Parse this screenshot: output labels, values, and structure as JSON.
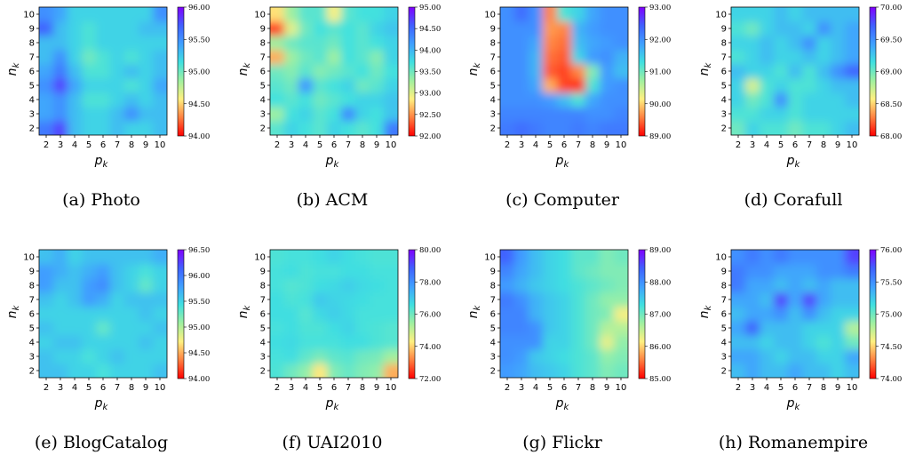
{
  "colors": {
    "colormap": [
      "#ff0000",
      "#ff8040",
      "#fff080",
      "#a0f0a0",
      "#40e0e0",
      "#40a0ff",
      "#4060ff",
      "#8000ff"
    ],
    "axis": "#000000",
    "background": "#ffffff"
  },
  "shared_axes": {
    "x_ticks": [
      "2",
      "3",
      "4",
      "5",
      "6",
      "7",
      "8",
      "9",
      "10"
    ],
    "y_ticks": [
      "2",
      "3",
      "4",
      "5",
      "6",
      "7",
      "8",
      "9",
      "10"
    ],
    "xlabel": "p_k",
    "ylabel": "n_k",
    "xlabel_main": "p",
    "xlabel_sub": "k",
    "ylabel_main": "n",
    "ylabel_sub": "k"
  },
  "chart_data": [
    {
      "type": "heatmap",
      "caption": "(a) Photo",
      "x": [
        2,
        3,
        4,
        5,
        6,
        7,
        8,
        9,
        10
      ],
      "y": [
        2,
        3,
        4,
        5,
        6,
        7,
        8,
        9,
        10
      ],
      "vmin": 94.0,
      "vmax": 96.0,
      "colorbar_ticks": [
        "94.00",
        "94.50",
        "95.00",
        "95.50",
        "96.00"
      ],
      "values": [
        [
          95.6,
          95.8,
          95.3,
          95.2,
          95.2,
          95.3,
          95.2,
          95.2,
          95.3
        ],
        [
          95.4,
          95.5,
          95.3,
          95.2,
          95.2,
          95.3,
          95.5,
          95.3,
          95.3
        ],
        [
          95.4,
          95.5,
          95.3,
          95.1,
          95.1,
          95.2,
          95.3,
          95.2,
          95.3
        ],
        [
          95.5,
          95.8,
          95.4,
          95.2,
          95.2,
          95.2,
          95.1,
          95.2,
          95.4
        ],
        [
          95.4,
          95.6,
          95.3,
          95.1,
          95.1,
          95.2,
          95.3,
          95.2,
          95.3
        ],
        [
          95.3,
          95.5,
          95.2,
          95.0,
          95.1,
          95.2,
          95.1,
          95.2,
          95.3
        ],
        [
          95.3,
          95.3,
          95.2,
          95.1,
          95.2,
          95.2,
          95.2,
          95.2,
          95.2
        ],
        [
          95.7,
          95.3,
          95.2,
          95.1,
          95.2,
          95.2,
          95.2,
          95.3,
          95.3
        ],
        [
          95.5,
          95.4,
          95.2,
          95.2,
          95.2,
          95.2,
          95.2,
          95.2,
          95.5
        ]
      ]
    },
    {
      "type": "heatmap",
      "caption": "(b) ACM",
      "x": [
        2,
        3,
        4,
        5,
        6,
        7,
        8,
        9,
        10
      ],
      "y": [
        2,
        3,
        4,
        5,
        6,
        7,
        8,
        9,
        10
      ],
      "vmin": 92.0,
      "vmax": 95.0,
      "colorbar_ticks": [
        "92.00",
        "92.50",
        "93.00",
        "93.50",
        "94.00",
        "94.50",
        "95.00"
      ],
      "values": [
        [
          93.6,
          93.8,
          93.7,
          93.6,
          93.8,
          93.7,
          93.6,
          93.7,
          94.4
        ],
        [
          93.3,
          93.7,
          93.8,
          93.6,
          93.7,
          94.3,
          93.8,
          93.7,
          93.9
        ],
        [
          93.7,
          93.6,
          93.7,
          93.5,
          93.6,
          93.7,
          93.8,
          93.8,
          93.9
        ],
        [
          93.6,
          93.5,
          94.2,
          93.6,
          93.7,
          93.8,
          93.5,
          93.6,
          93.8
        ],
        [
          93.5,
          93.4,
          93.6,
          93.4,
          93.5,
          93.6,
          93.7,
          93.5,
          93.7
        ],
        [
          92.6,
          93.3,
          93.5,
          93.6,
          93.3,
          93.7,
          93.6,
          93.4,
          93.8
        ],
        [
          93.3,
          93.5,
          93.6,
          93.6,
          93.5,
          93.7,
          93.6,
          93.7,
          93.8
        ],
        [
          92.2,
          93.0,
          93.5,
          93.7,
          93.6,
          93.7,
          93.6,
          93.8,
          93.9
        ],
        [
          92.8,
          93.3,
          93.6,
          93.6,
          92.9,
          93.6,
          93.7,
          93.7,
          93.8
        ]
      ]
    },
    {
      "type": "heatmap",
      "caption": "(c) Computer",
      "x": [
        2,
        3,
        4,
        5,
        6,
        7,
        8,
        9,
        10
      ],
      "y": [
        2,
        3,
        4,
        5,
        6,
        7,
        8,
        9,
        10
      ],
      "vmin": 89.0,
      "vmax": 93.0,
      "colorbar_ticks": [
        "89.00",
        "90.00",
        "91.00",
        "92.00",
        "93.00"
      ],
      "values": [
        [
          92.2,
          92.3,
          92.2,
          92.1,
          92.1,
          92.2,
          92.1,
          92.2,
          92.2
        ],
        [
          92.1,
          92.1,
          92.1,
          92.1,
          92.1,
          92.1,
          92.0,
          92.0,
          92.1
        ],
        [
          92.0,
          92.0,
          92.0,
          91.9,
          91.6,
          91.2,
          91.8,
          92.0,
          92.0
        ],
        [
          92.0,
          92.0,
          91.8,
          89.8,
          89.3,
          89.2,
          91.2,
          91.9,
          92.0
        ],
        [
          92.0,
          92.0,
          91.7,
          89.4,
          89.3,
          89.6,
          90.9,
          91.9,
          91.6
        ],
        [
          92.0,
          92.0,
          91.7,
          89.5,
          89.4,
          91.4,
          91.9,
          92.0,
          91.7
        ],
        [
          92.0,
          92.0,
          91.8,
          89.6,
          89.5,
          91.6,
          91.8,
          91.9,
          92.0
        ],
        [
          92.0,
          92.0,
          92.0,
          89.7,
          89.6,
          91.7,
          91.9,
          92.0,
          92.0
        ],
        [
          92.0,
          92.3,
          92.0,
          89.6,
          91.2,
          91.4,
          91.8,
          92.0,
          92.0
        ]
      ]
    },
    {
      "type": "heatmap",
      "caption": "(d) Corafull",
      "x": [
        2,
        3,
        4,
        5,
        6,
        7,
        8,
        9,
        10
      ],
      "y": [
        2,
        3,
        4,
        5,
        6,
        7,
        8,
        9,
        10
      ],
      "vmin": 68.0,
      "vmax": 70.0,
      "colorbar_ticks": [
        "68.00",
        "68.50",
        "69.00",
        "69.50",
        "70.00"
      ],
      "values": [
        [
          69.0,
          69.2,
          69.1,
          69.1,
          69.0,
          69.1,
          69.1,
          69.2,
          69.3
        ],
        [
          69.1,
          69.1,
          69.2,
          69.2,
          69.1,
          69.2,
          69.2,
          69.2,
          69.2
        ],
        [
          69.2,
          69.0,
          69.1,
          69.5,
          69.1,
          69.2,
          69.2,
          69.2,
          69.3
        ],
        [
          69.2,
          68.7,
          69.1,
          69.2,
          69.1,
          69.1,
          69.2,
          69.3,
          69.3
        ],
        [
          69.3,
          69.2,
          69.2,
          69.1,
          69.3,
          69.1,
          69.3,
          69.5,
          69.7
        ],
        [
          69.1,
          69.2,
          69.3,
          69.2,
          69.2,
          69.3,
          69.2,
          69.3,
          69.4
        ],
        [
          69.2,
          69.2,
          69.3,
          69.2,
          69.3,
          69.5,
          69.2,
          69.3,
          69.4
        ],
        [
          69.1,
          69.0,
          69.2,
          69.3,
          69.3,
          69.2,
          69.5,
          69.3,
          69.4
        ],
        [
          69.2,
          69.2,
          69.2,
          69.3,
          69.2,
          69.3,
          69.3,
          69.3,
          69.3
        ]
      ]
    },
    {
      "type": "heatmap",
      "caption": "(e) BlogCatalog",
      "x": [
        2,
        3,
        4,
        5,
        6,
        7,
        8,
        9,
        10
      ],
      "y": [
        2,
        3,
        4,
        5,
        6,
        7,
        8,
        9,
        10
      ],
      "vmin": 94.0,
      "vmax": 96.5,
      "colorbar_ticks": [
        "94.00",
        "94.50",
        "95.00",
        "95.50",
        "96.00",
        "96.50"
      ],
      "values": [
        [
          95.6,
          95.6,
          95.5,
          95.5,
          95.4,
          95.5,
          95.5,
          95.5,
          95.6
        ],
        [
          95.6,
          95.5,
          95.5,
          95.4,
          95.5,
          95.6,
          95.5,
          95.5,
          95.5
        ],
        [
          95.5,
          95.6,
          95.6,
          95.5,
          95.5,
          95.5,
          95.5,
          95.6,
          95.5
        ],
        [
          95.6,
          95.5,
          95.5,
          95.5,
          95.3,
          95.5,
          95.5,
          95.5,
          95.6
        ],
        [
          95.5,
          95.5,
          95.5,
          95.5,
          95.5,
          95.5,
          95.5,
          95.6,
          95.5
        ],
        [
          95.6,
          95.5,
          95.6,
          95.8,
          95.7,
          95.5,
          95.6,
          95.6,
          95.6
        ],
        [
          95.8,
          95.6,
          95.6,
          95.8,
          95.9,
          95.6,
          95.5,
          95.3,
          95.5
        ],
        [
          95.8,
          95.7,
          95.6,
          95.7,
          95.8,
          95.6,
          95.5,
          95.4,
          95.5
        ],
        [
          95.6,
          95.7,
          95.5,
          95.6,
          95.6,
          95.6,
          95.6,
          95.6,
          95.7
        ]
      ]
    },
    {
      "type": "heatmap",
      "caption": "(f) UAI2010",
      "x": [
        2,
        3,
        4,
        5,
        6,
        7,
        8,
        9,
        10
      ],
      "y": [
        2,
        3,
        4,
        5,
        6,
        7,
        8,
        9,
        10
      ],
      "vmin": 72.0,
      "vmax": 80.0,
      "colorbar_ticks": [
        "72.00",
        "74.00",
        "76.00",
        "78.00",
        "80.00"
      ],
      "values": [
        [
          76.4,
          76.0,
          75.6,
          74.2,
          75.8,
          76.1,
          75.8,
          75.6,
          73.6
        ],
        [
          76.5,
          76.6,
          76.2,
          75.9,
          76.2,
          76.3,
          76.0,
          75.9,
          75.4
        ],
        [
          76.6,
          76.7,
          76.5,
          76.5,
          76.5,
          76.6,
          76.6,
          76.4,
          76.3
        ],
        [
          76.5,
          76.6,
          76.4,
          76.4,
          76.6,
          76.8,
          76.5,
          76.4,
          76.3
        ],
        [
          76.6,
          76.6,
          76.3,
          76.7,
          76.9,
          76.7,
          76.5,
          76.5,
          76.5
        ],
        [
          76.6,
          76.4,
          76.5,
          77.0,
          76.8,
          76.7,
          76.6,
          76.5,
          76.5
        ],
        [
          76.5,
          76.3,
          76.4,
          76.6,
          76.7,
          76.9,
          76.7,
          76.6,
          76.5
        ],
        [
          76.5,
          76.6,
          76.4,
          76.5,
          76.5,
          76.6,
          76.6,
          76.5,
          76.5
        ],
        [
          76.4,
          76.5,
          76.5,
          76.6,
          76.8,
          76.6,
          76.5,
          76.4,
          76.4
        ]
      ]
    },
    {
      "type": "heatmap",
      "caption": "(g) Flickr",
      "x": [
        2,
        3,
        4,
        5,
        6,
        7,
        8,
        9,
        10
      ],
      "y": [
        2,
        3,
        4,
        5,
        6,
        7,
        8,
        9,
        10
      ],
      "vmin": 85.0,
      "vmax": 89.0,
      "colorbar_ticks": [
        "85.00",
        "86.00",
        "87.00",
        "88.00",
        "89.00"
      ],
      "values": [
        [
          87.9,
          87.8,
          87.6,
          87.5,
          87.4,
          87.2,
          87.1,
          86.9,
          87.0
        ],
        [
          88.0,
          87.9,
          87.5,
          87.4,
          87.3,
          87.2,
          87.1,
          86.8,
          86.9
        ],
        [
          88.0,
          88.0,
          88.0,
          87.4,
          87.4,
          87.2,
          87.0,
          86.3,
          86.8
        ],
        [
          88.1,
          88.1,
          88.0,
          87.5,
          87.4,
          87.2,
          87.0,
          86.6,
          86.6
        ],
        [
          88.1,
          88.1,
          87.7,
          87.5,
          87.4,
          87.2,
          87.0,
          86.9,
          86.2
        ],
        [
          88.2,
          88.0,
          87.7,
          87.5,
          87.4,
          87.2,
          87.0,
          86.8,
          86.8
        ],
        [
          87.9,
          87.7,
          87.5,
          87.4,
          87.3,
          87.2,
          87.1,
          87.0,
          86.9
        ],
        [
          88.1,
          87.8,
          87.6,
          87.4,
          87.3,
          87.1,
          87.0,
          86.9,
          86.9
        ],
        [
          88.4,
          87.9,
          87.6,
          87.4,
          87.3,
          87.1,
          87.1,
          86.9,
          87.0
        ]
      ]
    },
    {
      "type": "heatmap",
      "caption": "(h) Romanempire",
      "x": [
        2,
        3,
        4,
        5,
        6,
        7,
        8,
        9,
        10
      ],
      "y": [
        2,
        3,
        4,
        5,
        6,
        7,
        8,
        9,
        10
      ],
      "vmin": 74.0,
      "vmax": 76.0,
      "colorbar_ticks": [
        "74.00",
        "74.50",
        "75.00",
        "75.50",
        "76.00"
      ],
      "values": [
        [
          75.3,
          75.4,
          75.3,
          75.3,
          75.4,
          75.3,
          75.3,
          75.2,
          75.3
        ],
        [
          75.4,
          75.4,
          75.3,
          75.2,
          75.3,
          75.3,
          75.2,
          75.2,
          75.4
        ],
        [
          75.3,
          75.3,
          75.2,
          75.3,
          75.3,
          75.2,
          75.1,
          75.2,
          75.0
        ],
        [
          75.4,
          75.7,
          75.3,
          75.3,
          75.3,
          75.2,
          75.2,
          75.2,
          74.8
        ],
        [
          75.3,
          75.4,
          75.4,
          75.5,
          75.3,
          75.5,
          75.3,
          75.2,
          75.2
        ],
        [
          75.4,
          75.4,
          75.3,
          75.8,
          75.4,
          75.8,
          75.4,
          75.3,
          75.3
        ],
        [
          75.6,
          75.4,
          75.4,
          75.3,
          75.4,
          75.3,
          75.4,
          75.3,
          75.3
        ],
        [
          75.6,
          75.5,
          75.5,
          75.4,
          75.4,
          75.4,
          75.5,
          75.5,
          75.6
        ],
        [
          75.5,
          75.6,
          75.5,
          75.6,
          75.5,
          75.5,
          75.5,
          75.5,
          75.8
        ]
      ]
    }
  ]
}
